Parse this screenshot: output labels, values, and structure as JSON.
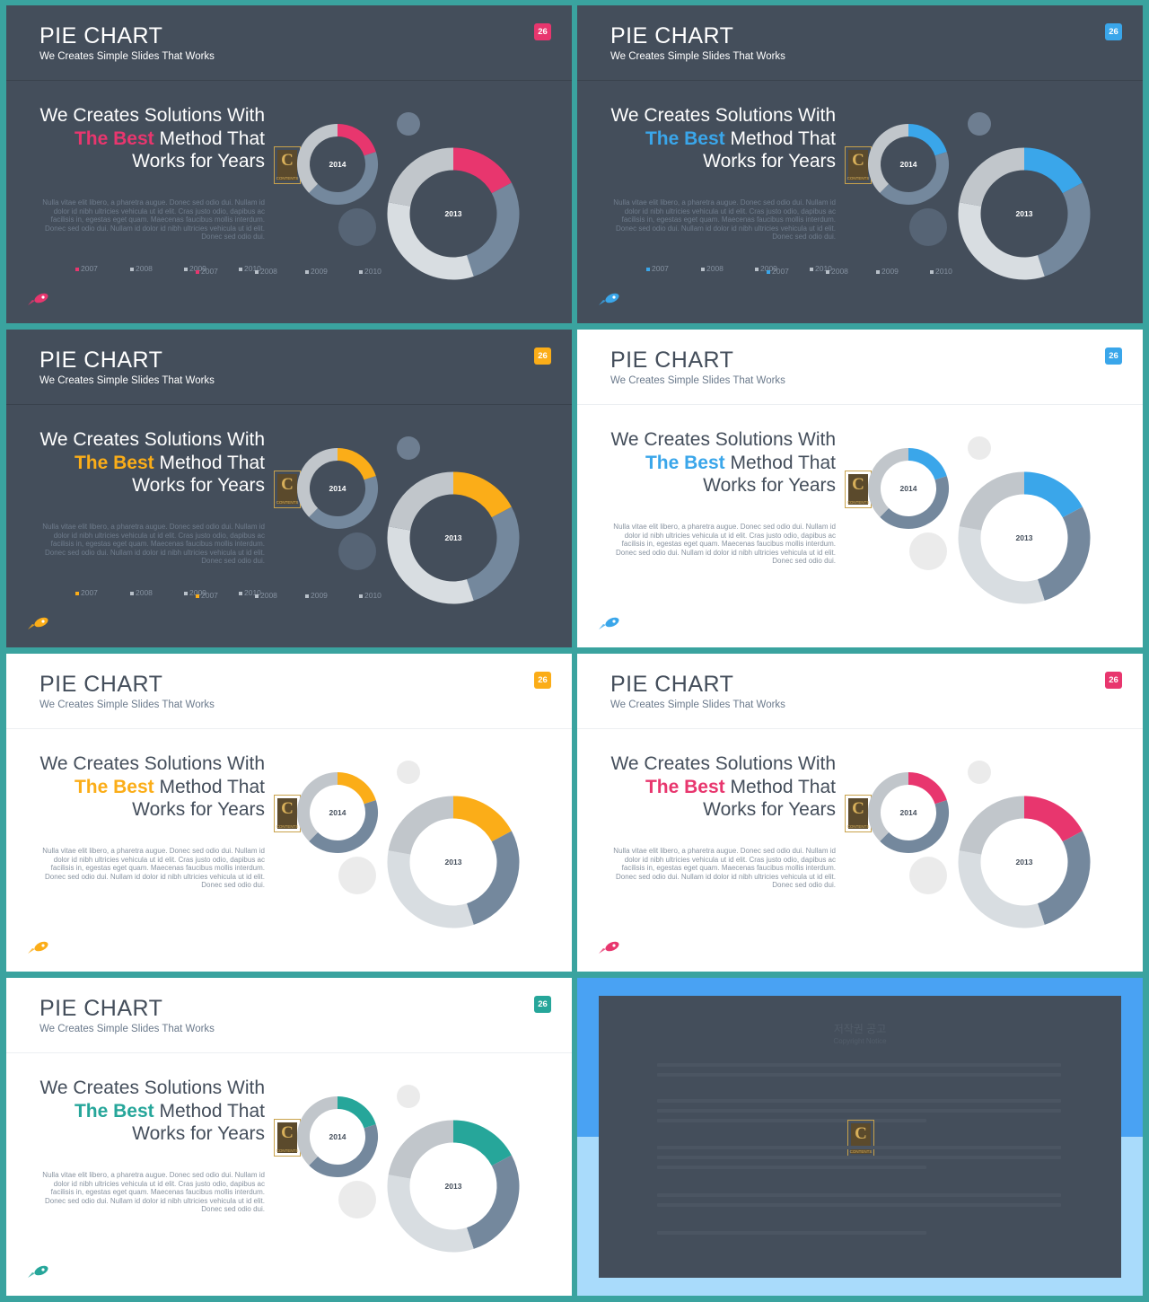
{
  "slides": [
    {
      "theme": "dark",
      "accent": "#e8366e",
      "badge": "26",
      "show_legend": true
    },
    {
      "theme": "dark",
      "accent": "#3aa6ea",
      "badge": "26",
      "show_legend": true
    },
    {
      "theme": "dark",
      "accent": "#fbad18",
      "badge": "26",
      "show_legend": true
    },
    {
      "theme": "light",
      "accent": "#3aa6ea",
      "badge": "26",
      "show_legend": false
    },
    {
      "theme": "light",
      "accent": "#fbad18",
      "badge": "26",
      "show_legend": false
    },
    {
      "theme": "light",
      "accent": "#e8366e",
      "badge": "26",
      "show_legend": false
    },
    {
      "theme": "light",
      "accent": "#26a69a",
      "badge": "26",
      "show_legend": false
    }
  ],
  "content": {
    "title": "PIE CHART",
    "subtitle": "We Creates Simple Slides That Works",
    "headline_line1": "We Creates Solutions With",
    "headline_highlight": "The Best",
    "headline_line2_rest": " Method That",
    "headline_line3": "Works for Years",
    "body": "Nulla vitae elit libero, a pharetra augue. Donec sed odio dui. Nullam id dolor id nibh ultricies vehicula ut id elit. Cras justo odio, dapibus ac facilisis in, egestas eget quam. Maecenas faucibus mollis interdum. Donec sed odio dui. Nullam id dolor id nibh ultricies vehicula ut id elit. Donec sed odio dui.",
    "donut_small_label": "2014",
    "donut_large_label": "2013",
    "logo_letter": "C",
    "logo_caption": "CONTENTS"
  },
  "legend": [
    "2007",
    "2008",
    "2009",
    "2010",
    "2007",
    "2008",
    "2009",
    "2010"
  ],
  "colors": {
    "grey_light": "#c1c6cb",
    "grey_dark": "#74889d",
    "grey_pale": "#d8dde1",
    "bubble_dark": "#6e7e91",
    "bubble_light": "#ebebeb"
  },
  "notice": {
    "title": "저작권 공고",
    "subtitle": "Copyright Notice"
  }
}
